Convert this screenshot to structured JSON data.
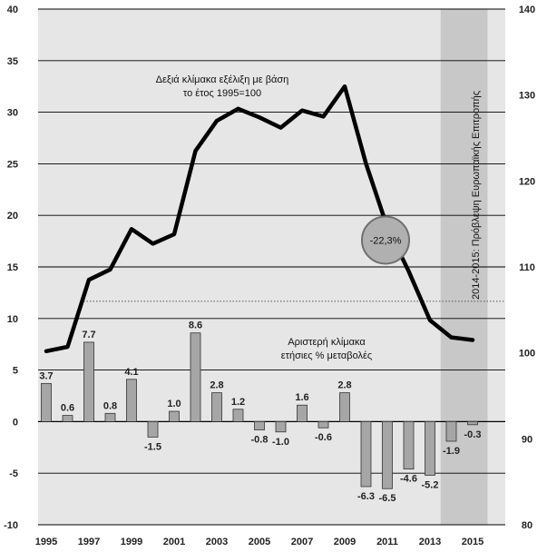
{
  "chart_data": {
    "type": "bar+line",
    "x": [
      1995,
      1996,
      1997,
      1998,
      1999,
      2000,
      2001,
      2002,
      2003,
      2004,
      2005,
      2006,
      2007,
      2008,
      2009,
      2010,
      2011,
      2012,
      2013,
      2014,
      2015
    ],
    "xticks": [
      "1995",
      "1997",
      "1999",
      "2001",
      "2003",
      "2005",
      "2007",
      "2009",
      "2011",
      "2013",
      "2015"
    ],
    "left_axis": {
      "ylim": [
        -10,
        40
      ],
      "ticks": [
        "40",
        "35",
        "30",
        "25",
        "20",
        "15",
        "10",
        "5",
        "0",
        "-5",
        "-10"
      ]
    },
    "right_axis": {
      "ylim": [
        80,
        140
      ],
      "ticks": [
        "140",
        "130",
        "120",
        "110",
        "100",
        "90",
        "80"
      ]
    },
    "bars": {
      "axis": "left",
      "values": [
        3.7,
        0.6,
        7.7,
        0.8,
        4.1,
        -1.5,
        1.0,
        8.6,
        2.8,
        1.2,
        -0.8,
        -1.0,
        1.6,
        -0.6,
        2.8,
        -6.3,
        -6.5,
        -4.6,
        -5.2,
        -1.9,
        -0.3
      ],
      "labels": [
        "3.7",
        "0.6",
        "7.7",
        "0.8",
        "4.1",
        "-1.5",
        "1.0",
        "8.6",
        "2.8",
        "1.2",
        "-0.8",
        "-1.0",
        "1.6",
        "-0.6",
        "2.8",
        "-6.3",
        "-6.5",
        "-4.6",
        "-5.2",
        "-1.9",
        "-0.3"
      ],
      "color": "#a6a6a6"
    },
    "line": {
      "axis": "right",
      "values": [
        100.2,
        100.7,
        108.5,
        109.7,
        114.4,
        112.7,
        113.8,
        123.5,
        127.0,
        128.4,
        127.4,
        126.2,
        128.2,
        127.5,
        131.0,
        122.0,
        114.6,
        109.5,
        103.8,
        101.8,
        101.5
      ],
      "color": "#000000"
    },
    "dotted_reference": {
      "axis": "right",
      "value": 106
    },
    "shaded_range": {
      "from": 2013.5,
      "to": 2015.7,
      "color": "#c8c8c8"
    },
    "annotations": {
      "right_scale": [
        "Δεξιά κλίμακα εξέλιξη με βάση",
        "το έτος 1995=100"
      ],
      "left_scale": [
        "Αριστερή κλίμακα",
        "ετήσιες % μεταβολές"
      ],
      "forecast": "2014-2015: Πρόβλεψη Ευρωπαϊκής Επιτροπής",
      "change_badge": "-22,3%"
    },
    "plot_background": "#e6e6e6"
  }
}
